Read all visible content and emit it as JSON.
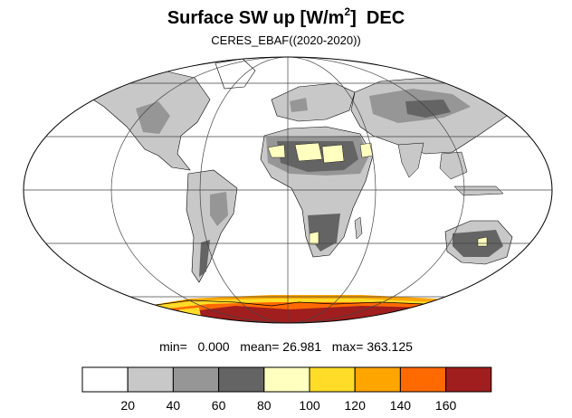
{
  "title": {
    "main": "Surface SW up [W/m",
    "superscript": "2",
    "closing": "]",
    "month": "DEC"
  },
  "subtitle": "CERES_EBAF((2020-2020))",
  "stats": {
    "min_label": "min=",
    "min_value": "0.000",
    "mean_label": "mean=",
    "mean_value": "26.981",
    "max_label": "max=",
    "max_value": "363.125"
  },
  "legend": {
    "ticks": [
      "20",
      "40",
      "60",
      "80",
      "100",
      "120",
      "140",
      "160"
    ],
    "colors": [
      "#ffffff",
      "#c8c8c8",
      "#969696",
      "#646464",
      "#ffffc0",
      "#ffdc28",
      "#ffa500",
      "#ff6a00",
      "#a01e1e"
    ]
  },
  "map": {
    "projection": "mollweide",
    "grid": true,
    "colors": {
      "ocean": "#ffffff",
      "land_light": "#c8c8c8",
      "land_mid": "#969696",
      "land_dark": "#646464",
      "pale_yellow": "#ffffc0",
      "yellow": "#ffdc28",
      "orange": "#ffa500",
      "dark_orange": "#ff6a00",
      "dark_red": "#a01e1e"
    }
  }
}
